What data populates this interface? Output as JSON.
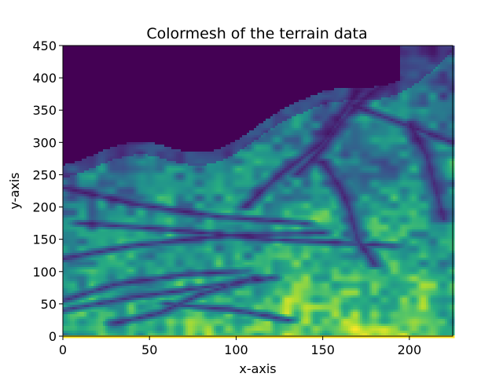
{
  "chart_data": {
    "type": "heatmap",
    "title": "Colormesh of the terrain data",
    "xlabel": "x-axis",
    "ylabel": "y-axis",
    "xlim": [
      0,
      225
    ],
    "ylim": [
      0,
      450
    ],
    "xticks": [
      0,
      50,
      100,
      150,
      200
    ],
    "yticks": [
      0,
      50,
      100,
      150,
      200,
      250,
      300,
      350,
      400,
      450
    ],
    "colormap": "viridis",
    "grid": false,
    "legend": "none",
    "colors": {
      "low": "#440154",
      "mid_low": "#3b528b",
      "mid": "#21918c",
      "mid_high": "#5ec962",
      "high": "#fde725"
    }
  }
}
